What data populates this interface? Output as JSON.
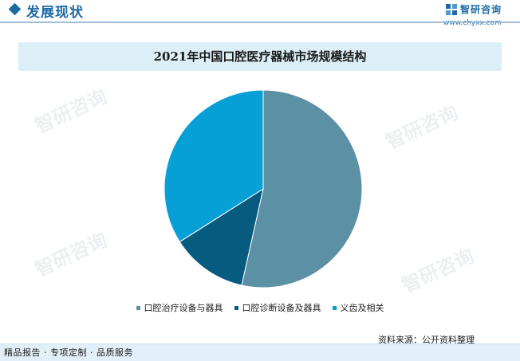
{
  "header": {
    "title": "发展现状",
    "logo_text": "智研咨询",
    "logo_url": "www.chyxx.com"
  },
  "chart_data": {
    "type": "pie",
    "title": "2021年中国口腔医疗器械市场规模结构",
    "start_angle_deg": 0,
    "direction": "clockwise",
    "categories": [
      "口腔治疗设备与器具",
      "口腔诊断设备及器具",
      "义齿及相关"
    ],
    "values": [
      53.5,
      12.5,
      34.0
    ],
    "colors": [
      "#5b90a5",
      "#075b7e",
      "#069fd6"
    ],
    "legend_position": "bottom"
  },
  "watermark_text": "智研咨询",
  "source": "资料来源：公开资料整理",
  "footer": "精品报告 · 专项定制 · 品质服务"
}
